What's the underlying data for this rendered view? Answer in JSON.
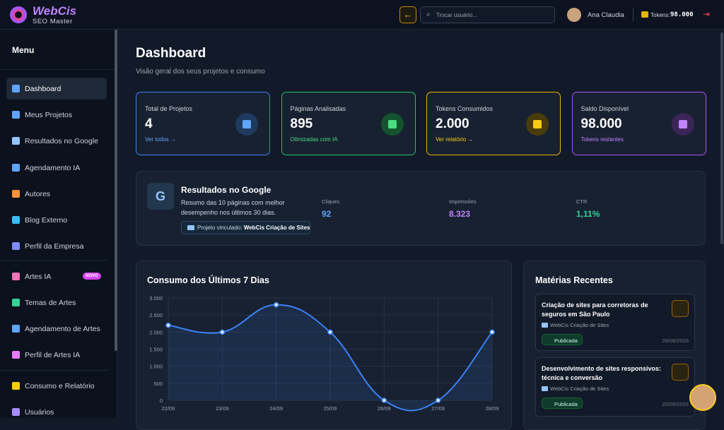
{
  "header": {
    "logo": "WebCis",
    "logo_sub": "SEO Master",
    "search_placeholder": "Trocar usuário...",
    "user": "Ana Claudia",
    "tokens_label": "Tokens:",
    "tokens_value": "98.000"
  },
  "sidebar": {
    "title": "Menu",
    "items": [
      "Dashboard",
      "Meus Projetos",
      "Resultados no Google",
      "Agendamento IA",
      "Autores",
      "Blog Externo",
      "Perfil da Empresa",
      "Artes IA",
      "Temas de Artes",
      "Agendamento de Artes",
      "Perfil de Artes IA",
      "Consumo e Relatório",
      "Usuários"
    ],
    "badge": "NOVO"
  },
  "page": {
    "title": "Dashboard",
    "subtitle": "Visão geral dos seus projetos e consumo"
  },
  "stats": [
    {
      "label": "Total de Projetos",
      "value": "4",
      "note": "Ver todos →"
    },
    {
      "label": "Páginas Analisadas",
      "value": "895",
      "note": "Otimizadas com IA"
    },
    {
      "label": "Tokens Consumidos",
      "value": "2.000",
      "note": "Ver relatório →"
    },
    {
      "label": "Saldo Disponível",
      "value": "98.000",
      "note": "Tokens restantes"
    }
  ],
  "google": {
    "icon": "G",
    "title": "Resultados no Google",
    "desc": "Resumo das 10 páginas com melhor desempenho nos últimos 30 dias.",
    "tag_label": "Projeto vinculado:",
    "tag_project": "WebCis Criação de Sites",
    "metrics": [
      {
        "label": "Cliques",
        "value": "92"
      },
      {
        "label": "Impressões",
        "value": "8.323"
      },
      {
        "label": "CTR",
        "value": "1,11%"
      }
    ]
  },
  "chart_data": {
    "type": "line",
    "title": "Consumo dos Últimos 7 Dias",
    "categories": [
      "22/09",
      "23/09",
      "24/09",
      "25/09",
      "26/09",
      "27/09",
      "28/09"
    ],
    "values": [
      2200,
      2000,
      2800,
      2000,
      0,
      0,
      2000
    ],
    "color": "#3b82f6",
    "ylim": [
      0,
      3000
    ],
    "yticks": [
      0,
      {
        "value": 500,
        "label": "500"
      },
      {
        "value": 1000,
        "label": "1.000"
      },
      {
        "value": 1500,
        "label": "1.500"
      },
      {
        "value": 2000,
        "label": "2.000"
      },
      {
        "value": 2500,
        "label": "2.500"
      },
      {
        "value": 3000,
        "label": "3.000"
      }
    ],
    "grid": true
  },
  "recent": {
    "title": "Matérias Recentes",
    "items": [
      {
        "title": "Criação de sites para corretoras de seguros em São Paulo",
        "project": "WebCis Criação de Sites",
        "status": "Publicada",
        "date": "28/09/2026"
      },
      {
        "title": "Desenvolvimento de sites responsivos: técnica e conversão",
        "project": "WebCis Criação de Sites",
        "status": "Publicada",
        "date": "25/09/2026"
      }
    ]
  }
}
